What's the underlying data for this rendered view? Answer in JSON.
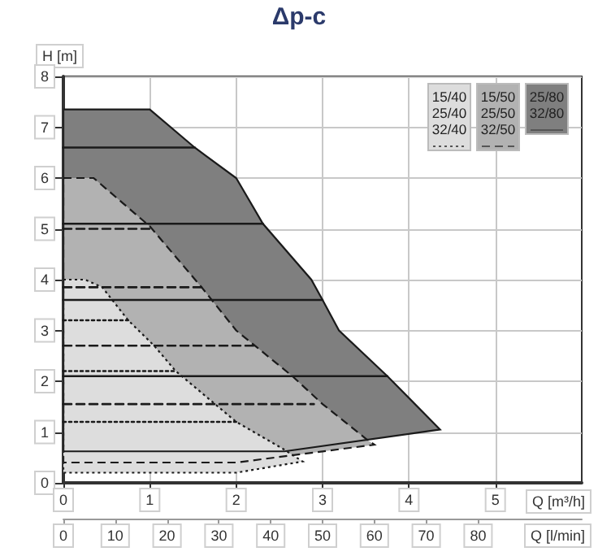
{
  "chart_data": {
    "type": "area",
    "title": "Δp-c",
    "xlabel": "Q [m³/h]",
    "x2label": "Q [l/min]",
    "ylabel": "H [m]",
    "xlim": [
      0,
      6
    ],
    "xticks": [
      0,
      1,
      2,
      3,
      4,
      5
    ],
    "x2lim": [
      0,
      100
    ],
    "x2ticks": [
      0,
      10,
      20,
      30,
      40,
      50,
      60,
      70,
      80
    ],
    "ylim": [
      0,
      8
    ],
    "yticks": [
      0,
      1,
      2,
      3,
      4,
      5,
      6,
      7,
      8
    ],
    "grid": true,
    "legend": "top right",
    "series": [
      {
        "name": "25/80\n32/80",
        "color": "#7f7f7f",
        "line_style": "solid",
        "x": [
          0,
          1.0,
          1.52,
          2.0,
          2.31,
          2.87,
          3.0,
          3.19,
          3.75,
          4.36,
          2.56,
          0
        ],
        "values": [
          7.35,
          7.35,
          6.6,
          6.0,
          5.1,
          4.0,
          3.6,
          3.0,
          2.1,
          1.05,
          0.62,
          0.62
        ]
      },
      {
        "name": "15/50\n25/50\n32/50",
        "color": "#b2b2b2",
        "line_style": "dashed",
        "x": [
          0,
          0.35,
          1.0,
          1.6,
          2.0,
          2.65,
          3.0,
          3.5,
          3.6,
          2.0,
          0
        ],
        "values": [
          6.0,
          6.0,
          5.05,
          3.85,
          3.0,
          2.1,
          1.55,
          0.87,
          0.75,
          0.4,
          0.4
        ]
      },
      {
        "name": "15/40\n25/40\n32/40",
        "color": "#dddddd",
        "line_style": "dotted",
        "x": [
          0,
          0.25,
          0.45,
          0.75,
          1.05,
          1.3,
          2.0,
          2.56,
          2.77,
          2.0,
          0
        ],
        "values": [
          4.0,
          4.0,
          3.85,
          3.2,
          2.7,
          2.2,
          1.2,
          0.65,
          0.42,
          0.2,
          0.2
        ]
      },
      {
        "type": "line",
        "color": "#1a1a1a",
        "line_style": "solid",
        "x": [
          0,
          1.52
        ],
        "values": [
          6.6,
          6.6
        ]
      },
      {
        "type": "line",
        "color": "#1a1a1a",
        "line_style": "solid",
        "x": [
          0,
          2.31
        ],
        "values": [
          5.1,
          5.1
        ]
      },
      {
        "type": "line",
        "color": "#1a1a1a",
        "line_style": "solid",
        "x": [
          0,
          3.0
        ],
        "values": [
          3.6,
          3.6
        ]
      },
      {
        "type": "line",
        "color": "#1a1a1a",
        "line_style": "solid",
        "x": [
          0,
          3.75
        ],
        "values": [
          2.1,
          2.1
        ]
      },
      {
        "type": "line",
        "color": "#1a1a1a",
        "line_style": "dashed",
        "x": [
          0,
          1.0
        ],
        "values": [
          5.0,
          5.0
        ]
      },
      {
        "type": "line",
        "color": "#1a1a1a",
        "line_style": "dashed",
        "x": [
          0,
          1.6
        ],
        "values": [
          3.85,
          3.85
        ]
      },
      {
        "type": "line",
        "color": "#1a1a1a",
        "line_style": "dashed",
        "x": [
          0,
          2.25
        ],
        "values": [
          2.7,
          2.7
        ]
      },
      {
        "type": "line",
        "color": "#1a1a1a",
        "line_style": "dashed",
        "x": [
          0,
          2.9
        ],
        "values": [
          1.55,
          1.55
        ]
      },
      {
        "type": "line",
        "color": "#1a1a1a",
        "line_style": "dotted",
        "x": [
          0,
          0.75
        ],
        "values": [
          3.2,
          3.2
        ]
      },
      {
        "type": "line",
        "color": "#1a1a1a",
        "line_style": "dotted",
        "x": [
          0,
          1.3
        ],
        "values": [
          2.2,
          2.2
        ]
      },
      {
        "type": "line",
        "color": "#1a1a1a",
        "line_style": "dotted",
        "x": [
          0,
          2.0
        ],
        "values": [
          1.2,
          1.2
        ]
      }
    ]
  }
}
